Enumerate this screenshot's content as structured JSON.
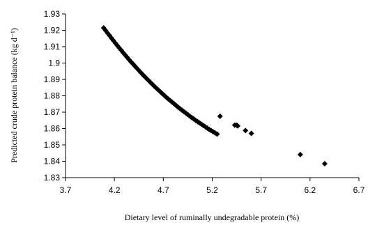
{
  "chart_data": {
    "type": "scatter",
    "xlabel": "Dietary level of ruminally undegradable protein (%)",
    "ylabel": "Predicted crude protein balance (kg d⁻¹)",
    "xlim": [
      3.7,
      6.7
    ],
    "ylim": [
      1.83,
      1.93
    ],
    "xticks": [
      "3.7",
      "4.2",
      "4.7",
      "5.2",
      "5.7",
      "6.2",
      "6.7"
    ],
    "yticks": [
      "1.83",
      "1.84",
      "1.85",
      "1.86",
      "1.87",
      "1.88",
      "1.89",
      "1.9",
      "1.91",
      "1.92",
      "1.93"
    ],
    "grid": false,
    "legend": "none",
    "marker": "diamond",
    "series": [
      {
        "x": [
          4.09,
          4.11,
          4.13,
          4.15,
          4.17,
          4.19,
          4.21,
          4.23,
          4.25,
          4.27,
          4.29,
          4.31,
          4.33,
          4.35,
          4.37,
          4.39,
          4.41,
          4.43,
          4.45,
          4.47,
          4.49,
          4.51,
          4.53,
          4.55,
          4.57,
          4.59,
          4.61,
          4.63,
          4.65,
          4.67,
          4.69,
          4.71,
          4.73,
          4.75,
          4.77,
          4.79,
          4.81,
          4.83,
          4.85,
          4.87,
          4.89,
          4.91,
          4.93,
          4.95,
          4.97,
          4.99,
          5.01,
          5.03,
          5.05,
          5.07,
          5.09,
          5.11,
          5.13,
          5.15,
          5.17,
          5.19,
          5.21,
          5.23,
          5.25,
          5.28,
          5.43,
          5.45,
          5.46,
          5.54,
          5.6,
          6.1,
          6.35
        ],
        "y": [
          1.9215,
          1.9199,
          1.9183,
          1.9168,
          1.9152,
          1.9137,
          1.9122,
          1.9107,
          1.9092,
          1.9078,
          1.9063,
          1.9049,
          1.9035,
          1.9021,
          1.9007,
          1.8994,
          1.8981,
          1.8968,
          1.8955,
          1.8942,
          1.8929,
          1.8917,
          1.8905,
          1.8893,
          1.8881,
          1.8869,
          1.8857,
          1.8846,
          1.8835,
          1.8824,
          1.8813,
          1.8802,
          1.8791,
          1.8781,
          1.8771,
          1.8761,
          1.8751,
          1.8741,
          1.8731,
          1.8722,
          1.8712,
          1.8703,
          1.8694,
          1.8685,
          1.8676,
          1.8667,
          1.8659,
          1.865,
          1.8642,
          1.8634,
          1.8626,
          1.8618,
          1.861,
          1.8602,
          1.8594,
          1.8587,
          1.858,
          1.8573,
          1.8566,
          1.8675,
          1.8621,
          1.8621,
          1.8616,
          1.8588,
          1.857,
          1.8441,
          1.8385
        ]
      }
    ]
  }
}
